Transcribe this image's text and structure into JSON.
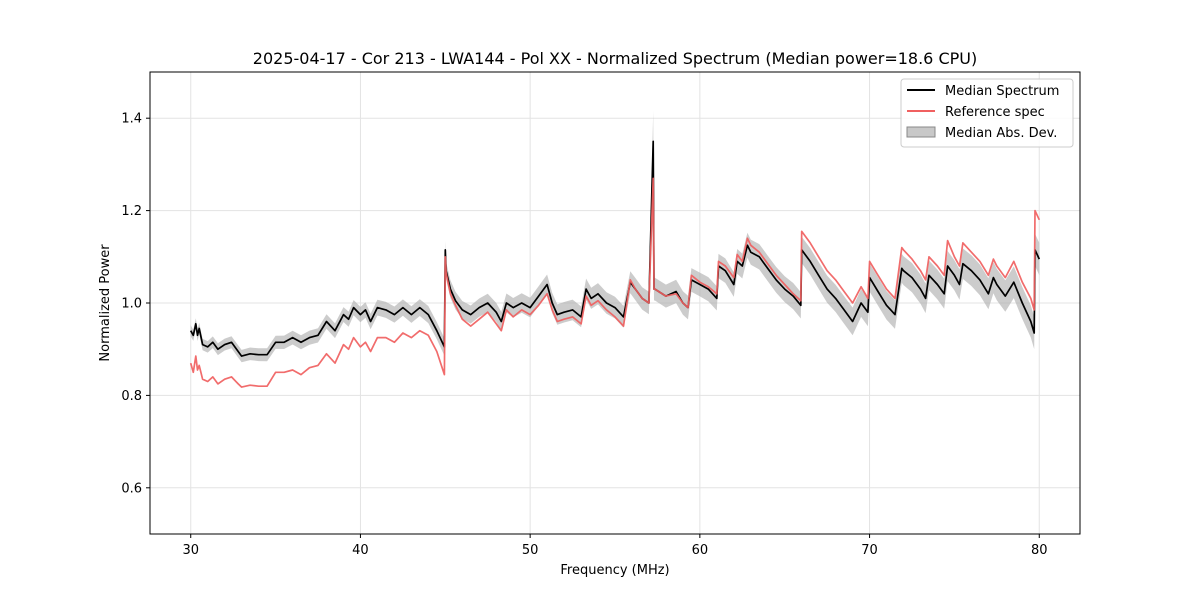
{
  "chart_data": {
    "type": "line",
    "title": "2025-04-17 - Cor 213 - LWA144 - Pol XX - Normalized Spectrum (Median power=18.6 CPU)",
    "xlabel": "Frequency (MHz)",
    "ylabel": "Normalized Power",
    "xlim": [
      27.6,
      82.4
    ],
    "ylim": [
      0.5,
      1.5
    ],
    "xticks": [
      30,
      40,
      50,
      60,
      70,
      80
    ],
    "xtick_labels": [
      "30",
      "40",
      "50",
      "60",
      "70",
      "80"
    ],
    "yticks": [
      0.6,
      0.8,
      1.0,
      1.2,
      1.4
    ],
    "ytick_labels": [
      "0.6",
      "0.8",
      "1.0",
      "1.2",
      "1.4"
    ],
    "grid": true,
    "legend_position": "top-right",
    "series": [
      {
        "name": "Median Spectrum",
        "color": "#000000",
        "x": [
          30.0,
          30.15,
          30.3,
          30.4,
          30.5,
          30.7,
          31.0,
          31.3,
          31.6,
          32.0,
          32.4,
          32.8,
          33.0,
          33.5,
          34.0,
          34.5,
          35.0,
          35.5,
          36.0,
          36.5,
          37.0,
          37.5,
          38.0,
          38.5,
          39.0,
          39.3,
          39.6,
          40.0,
          40.3,
          40.6,
          41.0,
          41.5,
          42.0,
          42.5,
          43.0,
          43.5,
          44.0,
          44.5,
          44.95,
          45.0,
          45.05,
          45.3,
          45.6,
          46.0,
          46.5,
          47.0,
          47.5,
          48.0,
          48.3,
          48.6,
          49.0,
          49.5,
          50.0,
          50.5,
          51.0,
          51.3,
          51.6,
          52.0,
          52.5,
          53.0,
          53.3,
          53.6,
          54.0,
          54.5,
          55.0,
          55.5,
          55.9,
          56.2,
          56.6,
          57.0,
          57.25,
          57.3,
          57.35,
          58.0,
          58.6,
          59.0,
          59.3,
          59.5,
          60.0,
          60.5,
          61.0,
          61.1,
          61.5,
          62.0,
          62.2,
          62.5,
          62.8,
          63.0,
          63.5,
          64.0,
          64.5,
          65.0,
          65.5,
          65.95,
          66.0,
          66.5,
          67.0,
          67.5,
          68.0,
          68.5,
          69.0,
          69.5,
          69.9,
          70.0,
          70.5,
          71.0,
          71.5,
          71.9,
          72.0,
          72.5,
          73.0,
          73.3,
          73.5,
          74.0,
          74.4,
          74.6,
          75.0,
          75.3,
          75.5,
          76.0,
          76.5,
          77.0,
          77.3,
          77.5,
          78.0,
          78.5,
          79.0,
          79.5,
          79.7,
          79.75,
          80.0
        ],
        "y": [
          0.94,
          0.93,
          0.955,
          0.93,
          0.945,
          0.91,
          0.905,
          0.915,
          0.9,
          0.91,
          0.915,
          0.895,
          0.885,
          0.89,
          0.888,
          0.888,
          0.915,
          0.915,
          0.925,
          0.915,
          0.925,
          0.93,
          0.96,
          0.94,
          0.975,
          0.965,
          0.99,
          0.975,
          0.985,
          0.96,
          0.99,
          0.985,
          0.975,
          0.99,
          0.975,
          0.99,
          0.975,
          0.94,
          0.905,
          1.115,
          1.07,
          1.03,
          1.005,
          0.985,
          0.975,
          0.99,
          1.0,
          0.98,
          0.96,
          1.0,
          0.99,
          1.0,
          0.99,
          1.015,
          1.04,
          1.0,
          0.975,
          0.98,
          0.985,
          0.97,
          1.03,
          1.01,
          1.02,
          1.0,
          0.99,
          0.97,
          1.045,
          1.03,
          1.01,
          1.0,
          1.35,
          1.03,
          1.03,
          1.015,
          1.025,
          1.0,
          0.99,
          1.05,
          1.04,
          1.03,
          1.01,
          1.08,
          1.07,
          1.04,
          1.09,
          1.08,
          1.125,
          1.11,
          1.1,
          1.075,
          1.05,
          1.03,
          1.015,
          0.995,
          1.115,
          1.09,
          1.06,
          1.03,
          1.01,
          0.985,
          0.96,
          1.0,
          0.98,
          1.055,
          1.025,
          0.995,
          0.975,
          1.075,
          1.07,
          1.055,
          1.03,
          1.01,
          1.06,
          1.04,
          1.02,
          1.08,
          1.06,
          1.04,
          1.085,
          1.07,
          1.05,
          1.02,
          1.055,
          1.04,
          1.015,
          1.045,
          1.0,
          0.96,
          0.935,
          1.115,
          1.095
        ]
      },
      {
        "name": "Reference spec",
        "color": "#f06060",
        "x": [
          30.0,
          30.15,
          30.3,
          30.4,
          30.5,
          30.7,
          31.0,
          31.3,
          31.6,
          32.0,
          32.4,
          32.8,
          33.0,
          33.5,
          34.0,
          34.5,
          35.0,
          35.5,
          36.0,
          36.5,
          37.0,
          37.5,
          38.0,
          38.5,
          39.0,
          39.3,
          39.6,
          40.0,
          40.3,
          40.6,
          41.0,
          41.5,
          42.0,
          42.5,
          43.0,
          43.5,
          44.0,
          44.5,
          44.95,
          45.0,
          45.05,
          45.3,
          45.6,
          46.0,
          46.5,
          47.0,
          47.5,
          48.0,
          48.3,
          48.6,
          49.0,
          49.5,
          50.0,
          50.5,
          51.0,
          51.3,
          51.6,
          52.0,
          52.5,
          53.0,
          53.3,
          53.6,
          54.0,
          54.5,
          55.0,
          55.5,
          55.9,
          56.2,
          56.6,
          57.0,
          57.25,
          57.3,
          57.35,
          58.0,
          58.6,
          59.0,
          59.3,
          59.5,
          60.0,
          60.5,
          61.0,
          61.1,
          61.5,
          62.0,
          62.2,
          62.5,
          62.8,
          63.0,
          63.5,
          64.0,
          64.5,
          65.0,
          65.5,
          65.95,
          66.0,
          66.5,
          67.0,
          67.5,
          68.0,
          68.5,
          69.0,
          69.5,
          69.9,
          70.0,
          70.5,
          71.0,
          71.5,
          71.9,
          72.0,
          72.5,
          73.0,
          73.3,
          73.5,
          74.0,
          74.4,
          74.6,
          75.0,
          75.3,
          75.5,
          76.0,
          76.5,
          77.0,
          77.3,
          77.5,
          78.0,
          78.5,
          79.0,
          79.5,
          79.7,
          79.75,
          80.0
        ],
        "y": [
          0.87,
          0.85,
          0.885,
          0.855,
          0.865,
          0.835,
          0.83,
          0.84,
          0.825,
          0.835,
          0.84,
          0.825,
          0.818,
          0.822,
          0.82,
          0.82,
          0.85,
          0.85,
          0.855,
          0.845,
          0.86,
          0.865,
          0.89,
          0.87,
          0.91,
          0.9,
          0.925,
          0.905,
          0.915,
          0.895,
          0.925,
          0.925,
          0.915,
          0.935,
          0.925,
          0.94,
          0.93,
          0.895,
          0.845,
          1.1,
          1.065,
          1.02,
          0.995,
          0.965,
          0.95,
          0.965,
          0.98,
          0.955,
          0.94,
          0.985,
          0.97,
          0.985,
          0.975,
          0.995,
          1.02,
          0.985,
          0.96,
          0.965,
          0.97,
          0.955,
          1.015,
          0.995,
          1.005,
          0.985,
          0.97,
          0.95,
          1.05,
          1.03,
          1.01,
          1.0,
          1.27,
          1.03,
          1.03,
          1.015,
          1.02,
          1.0,
          0.99,
          1.06,
          1.045,
          1.035,
          1.02,
          1.09,
          1.08,
          1.055,
          1.105,
          1.09,
          1.14,
          1.125,
          1.11,
          1.085,
          1.06,
          1.04,
          1.02,
          1.005,
          1.155,
          1.13,
          1.1,
          1.07,
          1.05,
          1.025,
          1.0,
          1.035,
          1.01,
          1.09,
          1.06,
          1.03,
          1.01,
          1.12,
          1.115,
          1.095,
          1.07,
          1.05,
          1.1,
          1.08,
          1.06,
          1.135,
          1.1,
          1.08,
          1.13,
          1.11,
          1.09,
          1.06,
          1.095,
          1.08,
          1.055,
          1.09,
          1.045,
          1.01,
          0.985,
          1.2,
          1.18
        ]
      }
    ],
    "band": {
      "name": "Median Abs. Dev.",
      "color": "#b0b0b0",
      "half_width_start": 0.012,
      "half_width_end": 0.035
    }
  }
}
